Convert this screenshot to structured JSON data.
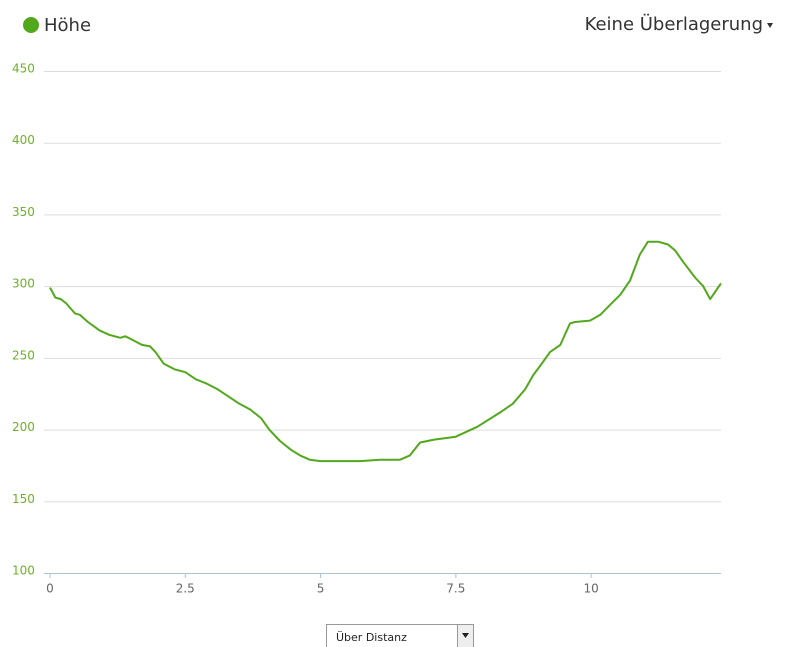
{
  "chart_data": {
    "type": "line",
    "x": [
      0,
      0.1,
      0.2,
      0.3,
      0.46,
      0.55,
      0.7,
      0.92,
      1.1,
      1.3,
      1.39,
      1.5,
      1.7,
      1.85,
      1.95,
      2.1,
      2.3,
      2.5,
      2.7,
      2.9,
      3.1,
      3.3,
      3.5,
      3.7,
      3.9,
      4.05,
      4.25,
      4.45,
      4.62,
      4.8,
      5.0,
      5.2,
      5.4,
      5.73,
      6.1,
      6.47,
      6.65,
      6.84,
      7.1,
      7.5,
      7.9,
      8.32,
      8.55,
      8.78,
      8.93,
      9.05,
      9.24,
      9.43,
      9.61,
      9.7,
      9.98,
      10.17,
      10.35,
      10.54,
      10.72,
      10.9,
      11.05,
      11.24,
      11.42,
      11.55,
      11.7,
      11.92,
      12.07,
      12.2,
      12.4
    ],
    "series": [
      {
        "name": "Höhe",
        "color": "#52a81c",
        "values": [
          299,
          292,
          291,
          288,
          281,
          280,
          275,
          269,
          266,
          264,
          265,
          263,
          259,
          258,
          254,
          246,
          242,
          240,
          235,
          232,
          228,
          223,
          218,
          214,
          208,
          200,
          192,
          186,
          182,
          179,
          178,
          178,
          178,
          178,
          179,
          179,
          182,
          191,
          193,
          195,
          202,
          212,
          218,
          228,
          238,
          244,
          254,
          259,
          274,
          275,
          276,
          280,
          287,
          294,
          304,
          322,
          331,
          331,
          329,
          325,
          317,
          306,
          300,
          291,
          302
        ]
      }
    ],
    "xlim": [
      0,
      12.4
    ],
    "ylim": [
      100,
      450
    ],
    "xticks": [
      0,
      2.5,
      5,
      7.5,
      10
    ],
    "yticks": [
      100,
      150,
      200,
      250,
      300,
      350,
      400,
      450
    ],
    "grid": true
  },
  "overlay_menu": "Keine Überlagerung",
  "x_mode_select": "Über Distanz"
}
